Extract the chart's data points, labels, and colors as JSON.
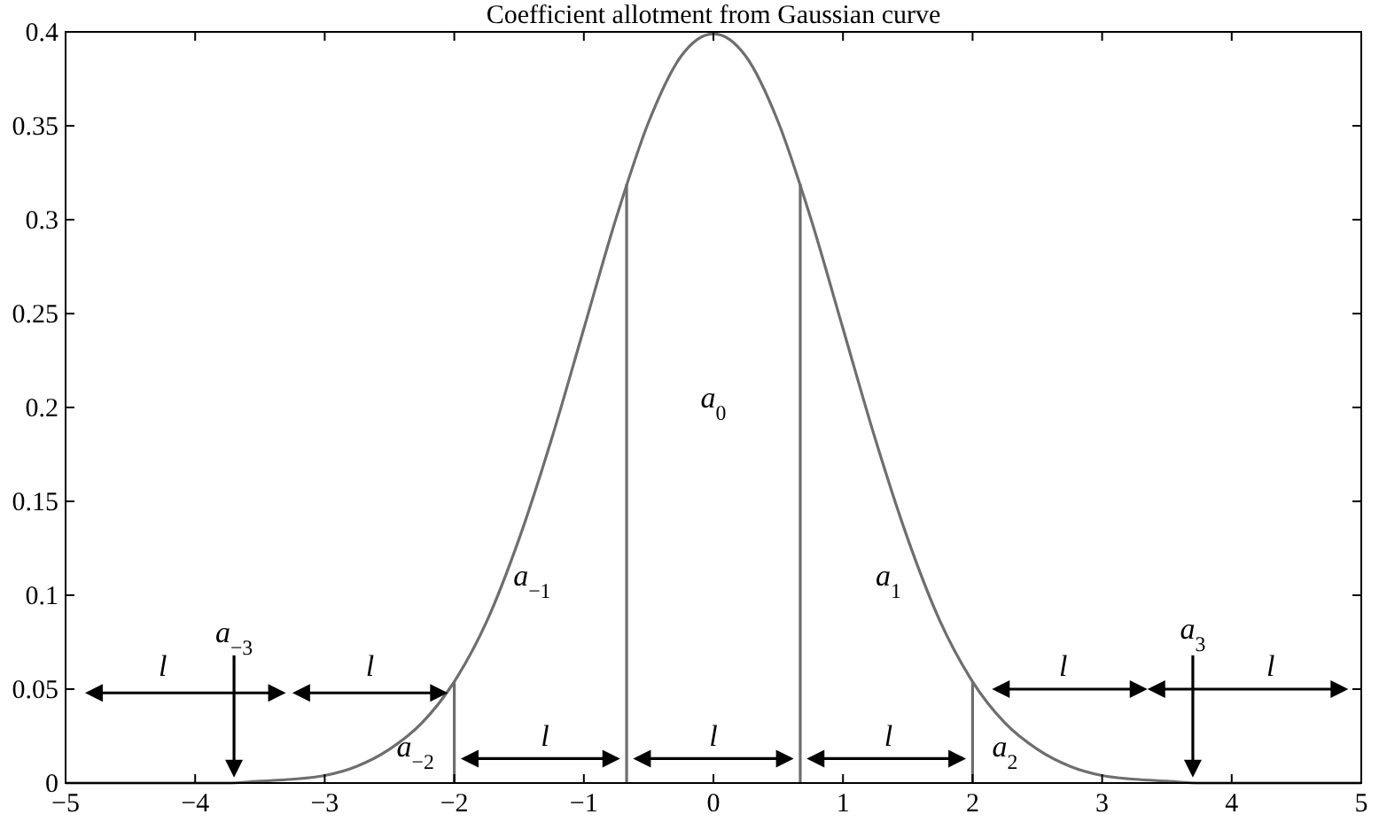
{
  "chart_data": {
    "type": "line",
    "title": "Coefficient allotment from Gaussian curve",
    "xlim": [
      -5,
      5
    ],
    "ylim": [
      0,
      0.4
    ],
    "xticks": [
      {
        "value": -5,
        "label": "−5"
      },
      {
        "value": -4,
        "label": "−4"
      },
      {
        "value": -3,
        "label": "−3"
      },
      {
        "value": -2,
        "label": "−2"
      },
      {
        "value": -1,
        "label": "−1"
      },
      0,
      1,
      2,
      3,
      4,
      5
    ],
    "yticks": [
      0,
      0.05,
      0.1,
      0.15,
      0.2,
      0.25,
      0.3,
      0.35,
      0.4
    ],
    "grid": false,
    "series": [
      {
        "color": "#6e6e6e",
        "x": [
          -5,
          -4.5,
          -4,
          -3.75,
          -3.5,
          -3.25,
          -3,
          -2.75,
          -2.5,
          -2.25,
          -2,
          -1.75,
          -1.5,
          -1.25,
          -1,
          -0.75,
          -0.5,
          -0.25,
          0,
          0.25,
          0.5,
          0.75,
          1,
          1.25,
          1.5,
          1.75,
          2,
          2.25,
          2.5,
          2.75,
          3,
          3.25,
          3.5,
          3.75,
          4,
          4.5,
          5
        ],
        "values": [
          0,
          0,
          0,
          0,
          0.001,
          0.002,
          0.004,
          0.009,
          0.018,
          0.032,
          0.054,
          0.086,
          0.13,
          0.183,
          0.242,
          0.301,
          0.352,
          0.387,
          0.399,
          0.387,
          0.352,
          0.301,
          0.242,
          0.183,
          0.13,
          0.086,
          0.054,
          0.032,
          0.018,
          0.009,
          0.004,
          0.002,
          0.001,
          0,
          0,
          0,
          0
        ]
      },
      {
        "color": "#6e6e6e",
        "x": [
          -2,
          -2
        ],
        "values": [
          0,
          0.054
        ]
      },
      {
        "color": "#6e6e6e",
        "x": [
          -0.67,
          -0.67
        ],
        "values": [
          0,
          0.319
        ]
      },
      {
        "color": "#6e6e6e",
        "x": [
          0.67,
          0.67
        ],
        "values": [
          0,
          0.319
        ]
      },
      {
        "color": "#6e6e6e",
        "x": [
          2,
          2
        ],
        "values": [
          0,
          0.054
        ]
      }
    ],
    "annotations": [
      "a$_{0}$",
      "a$_{−1}$",
      "a$_{1}$",
      "a$_{−2}$",
      "a$_{2}$",
      "a$_{−3}$",
      "a$_{3}$",
      "l",
      "l",
      "l",
      "l",
      "l",
      "l",
      "l"
    ]
  }
}
